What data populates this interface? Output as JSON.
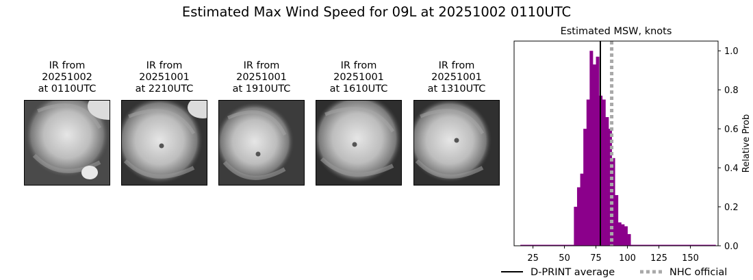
{
  "title": "Estimated Max Wind Speed for 09L at 20251002 0110UTC",
  "ir_panels": [
    {
      "title": "IR from\n20251002\nat 0110UTC",
      "image": "ir-satellite-image-hurricane"
    },
    {
      "title": "IR from\n20251001\nat 2210UTC",
      "image": "ir-satellite-image-hurricane"
    },
    {
      "title": "IR from\n20251001\nat 1910UTC",
      "image": "ir-satellite-image-hurricane"
    },
    {
      "title": "IR from\n20251001\nat 1610UTC",
      "image": "ir-satellite-image-hurricane"
    },
    {
      "title": "IR from\n20251001\nat 1310UTC",
      "image": "ir-satellite-image-hurricane"
    }
  ],
  "chart_data": {
    "type": "bar",
    "title": "Estimated MSW, knots",
    "xlabel": "",
    "ylabel": "Relative Prob",
    "xlim": [
      10,
      172
    ],
    "ylim": [
      0,
      1.05
    ],
    "x_ticks": [
      25,
      50,
      75,
      100,
      125,
      150
    ],
    "y_ticks": [
      0.0,
      0.2,
      0.4,
      0.6,
      0.8,
      1.0
    ],
    "y_tick_labels": [
      "0.0",
      "0.2",
      "0.4",
      "0.6",
      "0.8",
      "1.0"
    ],
    "y_axis_side": "right",
    "bin_width": 2.5,
    "bins": [
      {
        "x0": 15,
        "x1": 57.5,
        "value": 0.005
      },
      {
        "x0": 57.5,
        "x1": 60,
        "value": 0.2
      },
      {
        "x0": 60,
        "x1": 62.5,
        "value": 0.3
      },
      {
        "x0": 62.5,
        "x1": 65,
        "value": 0.37
      },
      {
        "x0": 65,
        "x1": 67.5,
        "value": 0.6
      },
      {
        "x0": 67.5,
        "x1": 70,
        "value": 0.75
      },
      {
        "x0": 70,
        "x1": 72.5,
        "value": 1.0
      },
      {
        "x0": 72.5,
        "x1": 75,
        "value": 0.93
      },
      {
        "x0": 75,
        "x1": 77.5,
        "value": 0.97
      },
      {
        "x0": 77.5,
        "x1": 80,
        "value": 0.77
      },
      {
        "x0": 80,
        "x1": 82.5,
        "value": 0.75
      },
      {
        "x0": 82.5,
        "x1": 85,
        "value": 0.66
      },
      {
        "x0": 85,
        "x1": 87.5,
        "value": 0.6
      },
      {
        "x0": 87.5,
        "x1": 90,
        "value": 0.45
      },
      {
        "x0": 90,
        "x1": 92.5,
        "value": 0.26
      },
      {
        "x0": 92.5,
        "x1": 95,
        "value": 0.12
      },
      {
        "x0": 95,
        "x1": 97.5,
        "value": 0.11
      },
      {
        "x0": 97.5,
        "x1": 100,
        "value": 0.1
      },
      {
        "x0": 100,
        "x1": 102.5,
        "value": 0.06
      },
      {
        "x0": 102.5,
        "x1": 170,
        "value": 0.005
      }
    ],
    "bar_color": "#8B008B",
    "dprint_average": 78.5,
    "nhc_official": 87.5,
    "series": [
      {
        "name": "D-PRINT average",
        "color": "#000000",
        "style": "solid"
      },
      {
        "name": "NHC official",
        "color": "#A9A9A9",
        "style": "dotted"
      }
    ],
    "legend_position": "bottom"
  }
}
